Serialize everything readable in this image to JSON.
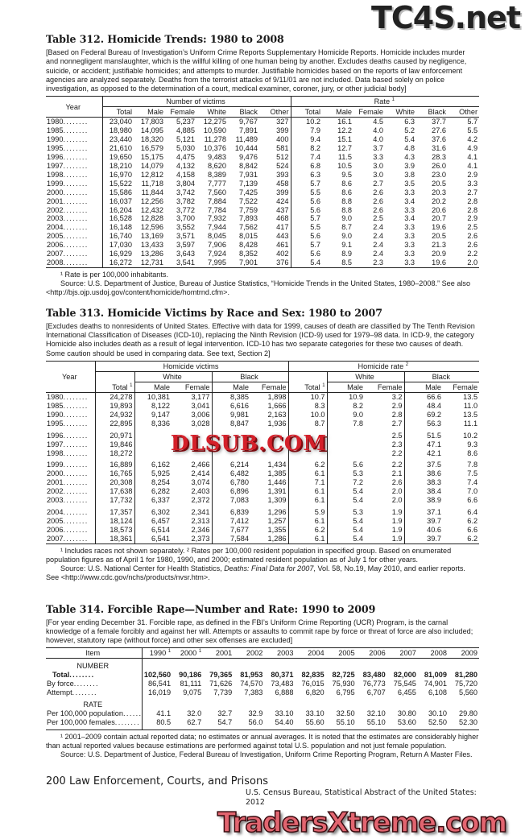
{
  "watermarks": {
    "top": "TC4S.net",
    "middle": "DLSUB.COM",
    "bottom": "TradersXtreme.com"
  },
  "t312": {
    "title": "Table 312. Homicide Trends: 1980 to 2008",
    "intro": "[Based on Federal Bureau of Investigation’s Uniform Crime Reports Supplementary Homicide Reports. Homicide includes murder and nonnegligent manslaughter, which is the willful killing of one human being by another. Excludes deaths caused by negligence, suicide, or accident; justifiable homicides; and attempts to murder. Justifiable homicides based on the reports of law enforcement agencies are analyzed separately. Deaths from the terrorist attacks of 9/11/01 are not included. Data based solely on police investigation, as opposed to the determination of a court, medical examiner, coroner, jury, or other judicial body]",
    "headers": {
      "year": "Year",
      "victims": "Number of victims",
      "rate": "Rate",
      "rate_sup": "1",
      "cols": [
        "Total",
        "Male",
        "Female",
        "White",
        "Black",
        "Other",
        "Total",
        "Male",
        "Female",
        "White",
        "Black",
        "Other"
      ]
    },
    "rows": [
      [
        "1980",
        "23,040",
        "17,803",
        "5,237",
        "12,275",
        "9,767",
        "327",
        "10.2",
        "16.1",
        "4.5",
        "6.3",
        "37.7",
        "5.7"
      ],
      [
        "1985",
        "18,980",
        "14,095",
        "4,885",
        "10,590",
        "7,891",
        "399",
        "7.9",
        "12.2",
        "4.0",
        "5.2",
        "27.6",
        "5.5"
      ],
      [
        "1990",
        "23,440",
        "18,320",
        "5,121",
        "11,278",
        "11,489",
        "400",
        "9.4",
        "15.1",
        "4.0",
        "5.4",
        "37.6",
        "4.2"
      ],
      [
        "1995",
        "21,610",
        "16,579",
        "5,030",
        "10,376",
        "10,444",
        "581",
        "8.2",
        "12.7",
        "3.7",
        "4.8",
        "31.6",
        "4.9"
      ],
      [
        "1996",
        "19,650",
        "15,175",
        "4,475",
        "9,483",
        "9,476",
        "512",
        "7.4",
        "11.5",
        "3.3",
        "4.3",
        "28.3",
        "4.1"
      ],
      [
        "1997",
        "18,210",
        "14,079",
        "4,132",
        "8,620",
        "8,842",
        "524",
        "6.8",
        "10.5",
        "3.0",
        "3.9",
        "26.0",
        "4.1"
      ],
      [
        "1998",
        "16,970",
        "12,812",
        "4,158",
        "8,389",
        "7,931",
        "393",
        "6.3",
        "9.5",
        "3.0",
        "3.8",
        "23.0",
        "2.9"
      ],
      [
        "1999",
        "15,522",
        "11,718",
        "3,804",
        "7,777",
        "7,139",
        "458",
        "5.7",
        "8.6",
        "2.7",
        "3.5",
        "20.5",
        "3.3"
      ],
      [
        "2000",
        "15,586",
        "11,844",
        "3,742",
        "7,560",
        "7,425",
        "399",
        "5.5",
        "8.6",
        "2.6",
        "3.3",
        "20.3",
        "2.7"
      ],
      [
        "2001",
        "16,037",
        "12,256",
        "3,782",
        "7,884",
        "7,522",
        "424",
        "5.6",
        "8.8",
        "2.6",
        "3.4",
        "20.2",
        "2.8"
      ],
      [
        "2002",
        "16,204",
        "12,432",
        "3,772",
        "7,784",
        "7,759",
        "437",
        "5.6",
        "8.8",
        "2.6",
        "3.3",
        "20.6",
        "2.8"
      ],
      [
        "2003",
        "16,528",
        "12,828",
        "3,700",
        "7,932",
        "7,893",
        "468",
        "5.7",
        "9.0",
        "2.5",
        "3.4",
        "20.7",
        "2.9"
      ],
      [
        "2004",
        "16,148",
        "12,596",
        "3,552",
        "7,944",
        "7,562",
        "417",
        "5.5",
        "8.7",
        "2.4",
        "3.3",
        "19.6",
        "2.5"
      ],
      [
        "2005",
        "16,740",
        "13,169",
        "3,571",
        "8,045",
        "8,015",
        "443",
        "5.6",
        "9.0",
        "2.4",
        "3.3",
        "20.5",
        "2.6"
      ],
      [
        "2006",
        "17,030",
        "13,433",
        "3,597",
        "7,906",
        "8,428",
        "461",
        "5.7",
        "9.1",
        "2.4",
        "3.3",
        "21.3",
        "2.6"
      ],
      [
        "2007",
        "16,929",
        "13,286",
        "3,643",
        "7,924",
        "8,352",
        "402",
        "5.6",
        "8.9",
        "2.4",
        "3.3",
        "20.9",
        "2.2"
      ],
      [
        "2008",
        "16,272",
        "12,731",
        "3,541",
        "7,995",
        "7,901",
        "376",
        "5.4",
        "8.5",
        "2.3",
        "3.3",
        "19.6",
        "2.0"
      ]
    ],
    "footnote": "¹ Rate is per 100,000 inhabitants.",
    "source": "Source: U.S. Department of Justice, Bureau of Justice Statistics, “Homicide Trends in the United States, 1980–2008.” See also <http://bjs.ojp.usdoj.gov/content/homicide/homtrnd.cfm>."
  },
  "t313": {
    "title": "Table 313. Homicide Victims by Race and Sex: 1980 to 2007",
    "intro": "[Excludes deaths to nonresidents of United States. Effective with data for 1999, causes of death are classified by The Tenth Revision International Classification of Diseases (ICD-10), replacing the Ninth Revision (ICD-9) used for 1979–98 data. In ICD-9, the category Homicide also includes death as a result of legal intervention. ICD-10 has two separate categories for these two causes of death. Some caution should be used in comparing data. See text, Section 2]",
    "headers": {
      "year": "Year",
      "victims": "Homicide victims",
      "rate": "Homicide rate",
      "rate_sup": "2",
      "total": "Total",
      "total_sup": "1",
      "white": "White",
      "black": "Black",
      "male": "Male",
      "female": "Female"
    },
    "rows": [
      [
        "1980",
        "24,278",
        "10,381",
        "3,177",
        "8,385",
        "1,898",
        "10.7",
        "10.9",
        "3.2",
        "66.6",
        "13.5"
      ],
      [
        "1985",
        "19,893",
        "8,122",
        "3,041",
        "6,616",
        "1,666",
        "8.3",
        "8.2",
        "2.9",
        "48.4",
        "11.0"
      ],
      [
        "1990",
        "24,932",
        "9,147",
        "3,006",
        "9,981",
        "2,163",
        "10.0",
        "9.0",
        "2.8",
        "69.2",
        "13.5"
      ],
      [
        "1995",
        "22,895",
        "8,336",
        "3,028",
        "8,847",
        "1,936",
        "8.7",
        "7.8",
        "2.7",
        "56.3",
        "11.1"
      ],
      [
        "1996",
        "20,971",
        "",
        "",
        "",
        "",
        "",
        "",
        "2.5",
        "51.5",
        "10.2"
      ],
      [
        "1997",
        "19,846",
        "",
        "",
        "",
        "",
        "",
        "",
        "2.3",
        "47.1",
        "9.3"
      ],
      [
        "1998",
        "18,272",
        "",
        "",
        "",
        "",
        "",
        "",
        "2.2",
        "42.1",
        "8.6"
      ],
      [
        "1999",
        "16,889",
        "6,162",
        "2,466",
        "6,214",
        "1,434",
        "6.2",
        "5.6",
        "2.2",
        "37.5",
        "7.8"
      ],
      [
        "2000",
        "16,765",
        "5,925",
        "2,414",
        "6,482",
        "1,385",
        "6.1",
        "5.3",
        "2.1",
        "38.6",
        "7.5"
      ],
      [
        "2001",
        "20,308",
        "8,254",
        "3,074",
        "6,780",
        "1,446",
        "7.1",
        "7.2",
        "2.6",
        "38.3",
        "7.4"
      ],
      [
        "2002",
        "17,638",
        "6,282",
        "2,403",
        "6,896",
        "1,391",
        "6.1",
        "5.4",
        "2.0",
        "38.4",
        "7.0"
      ],
      [
        "2003",
        "17,732",
        "6,337",
        "2,372",
        "7,083",
        "1,309",
        "6.1",
        "5.4",
        "2.0",
        "38.9",
        "6.6"
      ],
      [
        "2004",
        "17,357",
        "6,302",
        "2,341",
        "6,839",
        "1,296",
        "5.9",
        "5.3",
        "1.9",
        "37.1",
        "6.4"
      ],
      [
        "2005",
        "18,124",
        "6,457",
        "2,313",
        "7,412",
        "1,257",
        "6.1",
        "5.4",
        "1.9",
        "39.7",
        "6.2"
      ],
      [
        "2006",
        "18,573",
        "6,514",
        "2,346",
        "7,677",
        "1,355",
        "6.2",
        "5.4",
        "1.9",
        "40.6",
        "6.6"
      ],
      [
        "2007",
        "18,361",
        "6,541",
        "2,373",
        "7,584",
        "1,286",
        "6.1",
        "5.4",
        "1.9",
        "39.7",
        "6.2"
      ]
    ],
    "footnote": "¹ Includes races not shown separately. ² Rates per 100,000 resident population in specified group. Based on enumerated population figures as of April 1 for 1980, 1990, and 2000; estimated resident population as of July 1 for other years.",
    "source_pre": "Source: U.S. National Center for Health Statistics, ",
    "source_italic": "Deaths: Final Data for 2007",
    "source_post": ", Vol. 58, No.19, May 2010, and earlier reports. See <http://www.cdc.gov/nchs/products/nvsr.htm>."
  },
  "t314": {
    "title": "Table 314. Forcible Rape—Number and Rate: 1990 to 2009",
    "intro": "[For year ending December 31. Forcible rape, as defined in the FBI’s Uniform Crime Reporting (UCR) Program, is the carnal knowledge of a female forcibly and against her will. Attempts or assaults to commit rape by force or threat of force are also included; however, statutory rape (without force) and other sex offenses are excluded]",
    "headers": {
      "item": "Item",
      "years": [
        "1990",
        "2000",
        "2001",
        "2002",
        "2003",
        "2004",
        "2005",
        "2006",
        "2007",
        "2008",
        "2009"
      ],
      "sups": [
        "1",
        "1",
        "",
        "",
        "",
        "",
        "",
        "",
        "",
        "",
        ""
      ]
    },
    "number_label": "NUMBER",
    "rate_label": "RATE",
    "number_rows": [
      {
        "label": "Total",
        "bold": true,
        "values": [
          "102,560",
          "90,186",
          "79,365",
          "81,953",
          "80,371",
          "82,835",
          "82,725",
          "83,480",
          "82,000",
          "81,009",
          "81,280"
        ]
      },
      {
        "label": "By force",
        "values": [
          "86,541",
          "81,111",
          "71,626",
          "74,570",
          "73,483",
          "76,015",
          "75,930",
          "76,773",
          "75,545",
          "74,901",
          "75,720"
        ]
      },
      {
        "label": "Attempt",
        "values": [
          "16,019",
          "9,075",
          "7,739",
          "7,383",
          "6,888",
          "6,820",
          "6,795",
          "6,707",
          "6,455",
          "6,108",
          "5,560"
        ]
      }
    ],
    "rate_rows": [
      {
        "label": "Per 100,000 population",
        "values": [
          "41.1",
          "32.0",
          "32.7",
          "32.9",
          "33.10",
          "33.10",
          "32.50",
          "32.10",
          "30.80",
          "30.10",
          "29.80"
        ]
      },
      {
        "label": "Per 100,000 females",
        "values": [
          "80.5",
          "62.7",
          "54.7",
          "56.0",
          "54.40",
          "55.60",
          "55.10",
          "55.10",
          "53.60",
          "52.50",
          "52.30"
        ]
      }
    ],
    "footnote": "¹ 2001–2009 contain actual reported data; no estimates or annual averages. It is noted that the estimates are considerably higher than actual reported values because estimations are performed against total U.S. population and not just female population.",
    "source": "Source: U.S. Department of Justice, Federal Bureau of Investigation, Uniform Crime Reporting Program, Return A Master Files."
  },
  "footer": {
    "page": "200  Law Enforcement, Courts, and Prisons",
    "publication": "U.S. Census Bureau, Statistical Abstract of the United States: 2012"
  }
}
